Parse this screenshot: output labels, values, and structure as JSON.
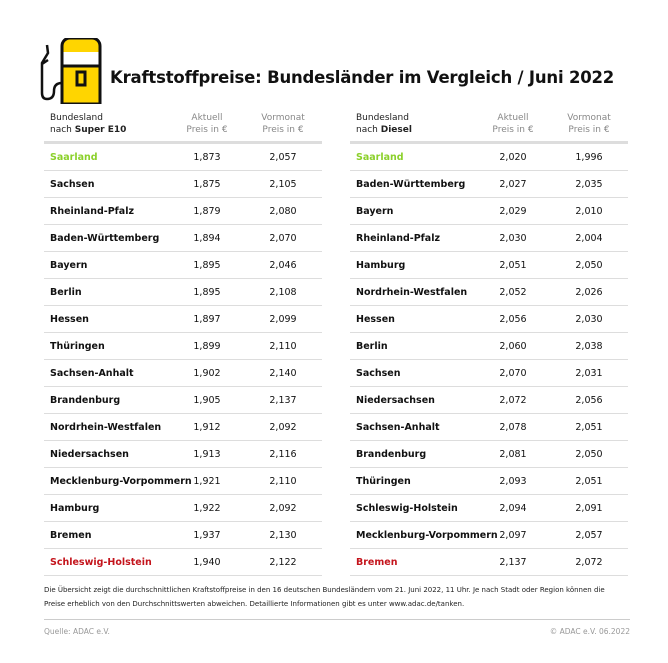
{
  "title": "Kraftstoffpreise: Bundesländer im Vergleich / Juni 2022",
  "colors": {
    "cheapest": "#8bd02a",
    "most_expensive": "#c4141c",
    "icon_fill": "#ffd500"
  },
  "icon": "fuel-pump-icon",
  "tables": [
    {
      "header": {
        "col0_line1": "Bundesland",
        "col0_prefix": "nach ",
        "col0_fuel": "Super E10",
        "col1_line1": "Aktuell",
        "col1_line2": "Preis in €",
        "col2_line1": "Vormonat",
        "col2_line2": "Preis in €"
      },
      "rows": [
        [
          "Saarland",
          "1,873",
          "2,057"
        ],
        [
          "Sachsen",
          "1,875",
          "2,105"
        ],
        [
          "Rheinland-Pfalz",
          "1,879",
          "2,080"
        ],
        [
          "Baden-Württemberg",
          "1,894",
          "2,070"
        ],
        [
          "Bayern",
          "1,895",
          "2,046"
        ],
        [
          "Berlin",
          "1,895",
          "2,108"
        ],
        [
          "Hessen",
          "1,897",
          "2,099"
        ],
        [
          "Thüringen",
          "1,899",
          "2,110"
        ],
        [
          "Sachsen-Anhalt",
          "1,902",
          "2,140"
        ],
        [
          "Brandenburg",
          "1,905",
          "2,137"
        ],
        [
          "Nordrhein-Westfalen",
          "1,912",
          "2,092"
        ],
        [
          "Niedersachsen",
          "1,913",
          "2,116"
        ],
        [
          "Mecklenburg-Vorpommern",
          "1,921",
          "2,110"
        ],
        [
          "Hamburg",
          "1,922",
          "2,092"
        ],
        [
          "Bremen",
          "1,937",
          "2,130"
        ],
        [
          "Schleswig-Holstein",
          "1,940",
          "2,122"
        ]
      ]
    },
    {
      "header": {
        "col0_line1": "Bundesland",
        "col0_prefix": "nach ",
        "col0_fuel": "Diesel",
        "col1_line1": "Aktuell",
        "col1_line2": "Preis in €",
        "col2_line1": "Vormonat",
        "col2_line2": "Preis in €"
      },
      "rows": [
        [
          "Saarland",
          "2,020",
          "1,996"
        ],
        [
          "Baden-Württemberg",
          "2,027",
          "2,035"
        ],
        [
          "Bayern",
          "2,029",
          "2,010"
        ],
        [
          "Rheinland-Pfalz",
          "2,030",
          "2,004"
        ],
        [
          "Hamburg",
          "2,051",
          "2,050"
        ],
        [
          "Nordrhein-Westfalen",
          "2,052",
          "2,026"
        ],
        [
          "Hessen",
          "2,056",
          "2,030"
        ],
        [
          "Berlin",
          "2,060",
          "2,038"
        ],
        [
          "Sachsen",
          "2,070",
          "2,031"
        ],
        [
          "Niedersachsen",
          "2,072",
          "2,056"
        ],
        [
          "Sachsen-Anhalt",
          "2,078",
          "2,051"
        ],
        [
          "Brandenburg",
          "2,081",
          "2,050"
        ],
        [
          "Thüringen",
          "2,093",
          "2,051"
        ],
        [
          "Schleswig-Holstein",
          "2,094",
          "2,091"
        ],
        [
          "Mecklenburg-Vorpommern",
          "2,097",
          "2,057"
        ],
        [
          "Bremen",
          "2,137",
          "2,072"
        ]
      ]
    }
  ],
  "note": "Die Übersicht zeigt die durchschnittlichen Kraftstoffpreise in den 16 deutschen Bundesländern vom 21. Juni 2022, 11 Uhr. Je nach Stadt oder Region können die Preise erheblich von den Durchschnittswerten abweichen. Detaillierte Informationen gibt es unter www.adac.de/tanken.",
  "source": "Quelle: ADAC e.V.",
  "copyright": "© ADAC e.V. 06.2022"
}
